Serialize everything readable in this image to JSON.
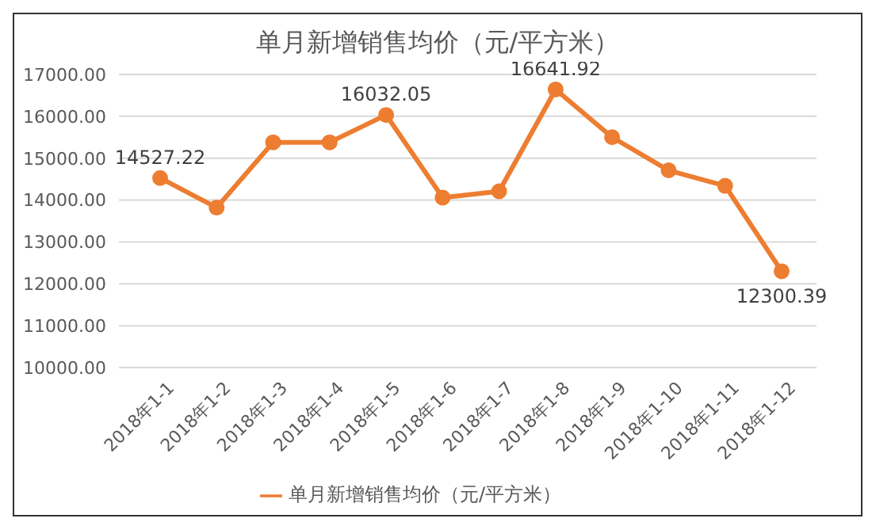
{
  "chart_data": {
    "type": "line",
    "title": "单月新增销售均价（元/平方米）",
    "categories": [
      "2018年1-1",
      "2018年1-2",
      "2018年1-3",
      "2018年1-4",
      "2018年1-5",
      "2018年1-6",
      "2018年1-7",
      "2018年1-8",
      "2018年1-9",
      "2018年1-10",
      "2018年1-11",
      "2018年1-12"
    ],
    "series": [
      {
        "name": "单月新增销售均价（元/平方米）",
        "color": "#ed7d31",
        "values": [
          14527.22,
          13820,
          15380,
          15380,
          16032.05,
          14060,
          14210,
          16641.92,
          15500,
          14710,
          14340,
          12300.39
        ],
        "value_labels": [
          "14527.22",
          null,
          null,
          null,
          "16032.05",
          null,
          null,
          "16641.92",
          null,
          null,
          null,
          "12300.39"
        ]
      }
    ],
    "ylim": [
      10000,
      17000
    ],
    "yticks": [
      {
        "value": 10000,
        "label": "10000.00"
      },
      {
        "value": 11000,
        "label": "11000.00"
      },
      {
        "value": 12000,
        "label": "12000.00"
      },
      {
        "value": 13000,
        "label": "13000.00"
      },
      {
        "value": 14000,
        "label": "14000.00"
      },
      {
        "value": 15000,
        "label": "15000.00"
      },
      {
        "value": 16000,
        "label": "16000.00"
      },
      {
        "value": 17000,
        "label": "17000.00"
      }
    ],
    "grid": "y",
    "legend": "bottom",
    "marker": "circle",
    "line_style": "solid"
  }
}
